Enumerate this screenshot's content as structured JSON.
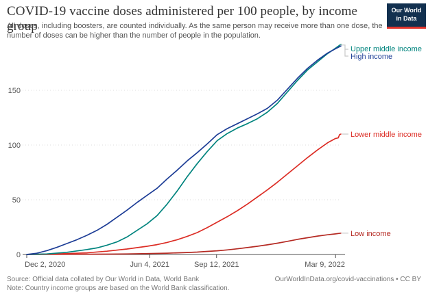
{
  "header": {
    "title": "COVID-19 vaccine doses administered per 100 people, by income group",
    "subtitle": "All doses, including boosters, are counted individually. As the same person may receive more than one dose, the number of doses can be higher than the number of people in the population.",
    "logo": {
      "line1": "Our World",
      "line2": "in Data"
    }
  },
  "footer": {
    "source_line": "Source: Official data collated by Our World in Data, World Bank",
    "note_line": "Note: Country income groups are based on the World Bank classification.",
    "credit": "OurWorldInData.org/covid-vaccinations • CC BY"
  },
  "chart_data": {
    "type": "line",
    "title": "COVID-19 vaccine doses administered per 100 people, by income group",
    "xlabel": "",
    "ylabel": "",
    "x_axis": {
      "tick_labels": [
        "Dec 2, 2020",
        "Jun 4, 2021",
        "Sep 12, 2021",
        "Mar 9, 2022"
      ],
      "tick_days": [
        0,
        184,
        284,
        462
      ],
      "start_date": "Dec 2, 2020",
      "end_day": 470
    },
    "y_axis": {
      "ticks": [
        0,
        50,
        100,
        150
      ],
      "ylim": [
        0,
        195
      ],
      "grid": "dashed"
    },
    "legend_position": "line-end labels, right side",
    "colors": {
      "grid": "#dcdcdc",
      "axis": "#4f4f4f",
      "connector": "#c8c8c8"
    },
    "series": [
      {
        "id": "high-income",
        "name": "High income",
        "color": "#1d3d96",
        "points": [
          [
            0,
            0
          ],
          [
            14,
            1
          ],
          [
            30,
            3.5
          ],
          [
            45,
            6.5
          ],
          [
            60,
            10
          ],
          [
            75,
            13.5
          ],
          [
            90,
            17.5
          ],
          [
            105,
            22
          ],
          [
            120,
            27.5
          ],
          [
            135,
            34
          ],
          [
            150,
            40.5
          ],
          [
            165,
            47.5
          ],
          [
            180,
            54
          ],
          [
            195,
            60.5
          ],
          [
            210,
            69
          ],
          [
            225,
            77
          ],
          [
            240,
            85.5
          ],
          [
            255,
            93
          ],
          [
            270,
            101
          ],
          [
            285,
            109.5
          ],
          [
            300,
            115
          ],
          [
            315,
            119.5
          ],
          [
            330,
            124
          ],
          [
            345,
            128.5
          ],
          [
            360,
            133.5
          ],
          [
            375,
            141
          ],
          [
            390,
            151
          ],
          [
            405,
            161
          ],
          [
            420,
            170
          ],
          [
            435,
            177.5
          ],
          [
            450,
            184
          ],
          [
            462,
            188
          ],
          [
            470,
            190.5
          ]
        ]
      },
      {
        "id": "upper-middle-income",
        "name": "Upper middle income",
        "color": "#00847e",
        "points": [
          [
            0,
            0
          ],
          [
            30,
            0.5
          ],
          [
            60,
            2
          ],
          [
            90,
            4.5
          ],
          [
            105,
            6
          ],
          [
            120,
            8.5
          ],
          [
            135,
            11.5
          ],
          [
            150,
            16
          ],
          [
            165,
            22
          ],
          [
            180,
            28
          ],
          [
            195,
            35.5
          ],
          [
            210,
            46
          ],
          [
            225,
            58
          ],
          [
            240,
            71
          ],
          [
            255,
            83
          ],
          [
            270,
            94
          ],
          [
            285,
            104
          ],
          [
            300,
            110.5
          ],
          [
            315,
            115.5
          ],
          [
            330,
            119.5
          ],
          [
            345,
            124
          ],
          [
            360,
            130
          ],
          [
            375,
            138
          ],
          [
            390,
            148.5
          ],
          [
            405,
            159
          ],
          [
            420,
            168.5
          ],
          [
            435,
            176
          ],
          [
            450,
            183.5
          ],
          [
            462,
            188.5
          ],
          [
            470,
            192
          ]
        ]
      },
      {
        "id": "lower-middle-income",
        "name": "Lower middle income",
        "color": "#dc2d25",
        "points": [
          [
            0,
            0
          ],
          [
            30,
            0.3
          ],
          [
            60,
            0.8
          ],
          [
            90,
            1.5
          ],
          [
            120,
            3
          ],
          [
            150,
            5
          ],
          [
            180,
            7.5
          ],
          [
            195,
            9
          ],
          [
            210,
            11
          ],
          [
            225,
            13.5
          ],
          [
            240,
            16.5
          ],
          [
            255,
            20
          ],
          [
            270,
            24.5
          ],
          [
            285,
            29.5
          ],
          [
            300,
            34.5
          ],
          [
            315,
            40
          ],
          [
            330,
            46
          ],
          [
            345,
            52.5
          ],
          [
            360,
            59
          ],
          [
            375,
            66
          ],
          [
            390,
            73.5
          ],
          [
            405,
            81
          ],
          [
            420,
            88.5
          ],
          [
            435,
            95.5
          ],
          [
            450,
            102
          ],
          [
            462,
            106
          ],
          [
            466,
            106.5
          ],
          [
            468,
            109.5
          ],
          [
            470,
            110
          ]
        ]
      },
      {
        "id": "low-income",
        "name": "Low income",
        "color": "#b52a23",
        "points": [
          [
            0,
            0
          ],
          [
            60,
            0.1
          ],
          [
            120,
            0.3
          ],
          [
            150,
            0.5
          ],
          [
            180,
            0.8
          ],
          [
            210,
            1.2
          ],
          [
            240,
            1.8
          ],
          [
            255,
            2.2
          ],
          [
            270,
            2.8
          ],
          [
            285,
            3.4
          ],
          [
            300,
            4.2
          ],
          [
            315,
            5.2
          ],
          [
            330,
            6.3
          ],
          [
            345,
            7.5
          ],
          [
            360,
            8.8
          ],
          [
            375,
            10.3
          ],
          [
            390,
            12
          ],
          [
            405,
            13.8
          ],
          [
            420,
            15.3
          ],
          [
            435,
            16.8
          ],
          [
            450,
            18
          ],
          [
            462,
            18.8
          ],
          [
            470,
            19.5
          ]
        ]
      }
    ]
  }
}
